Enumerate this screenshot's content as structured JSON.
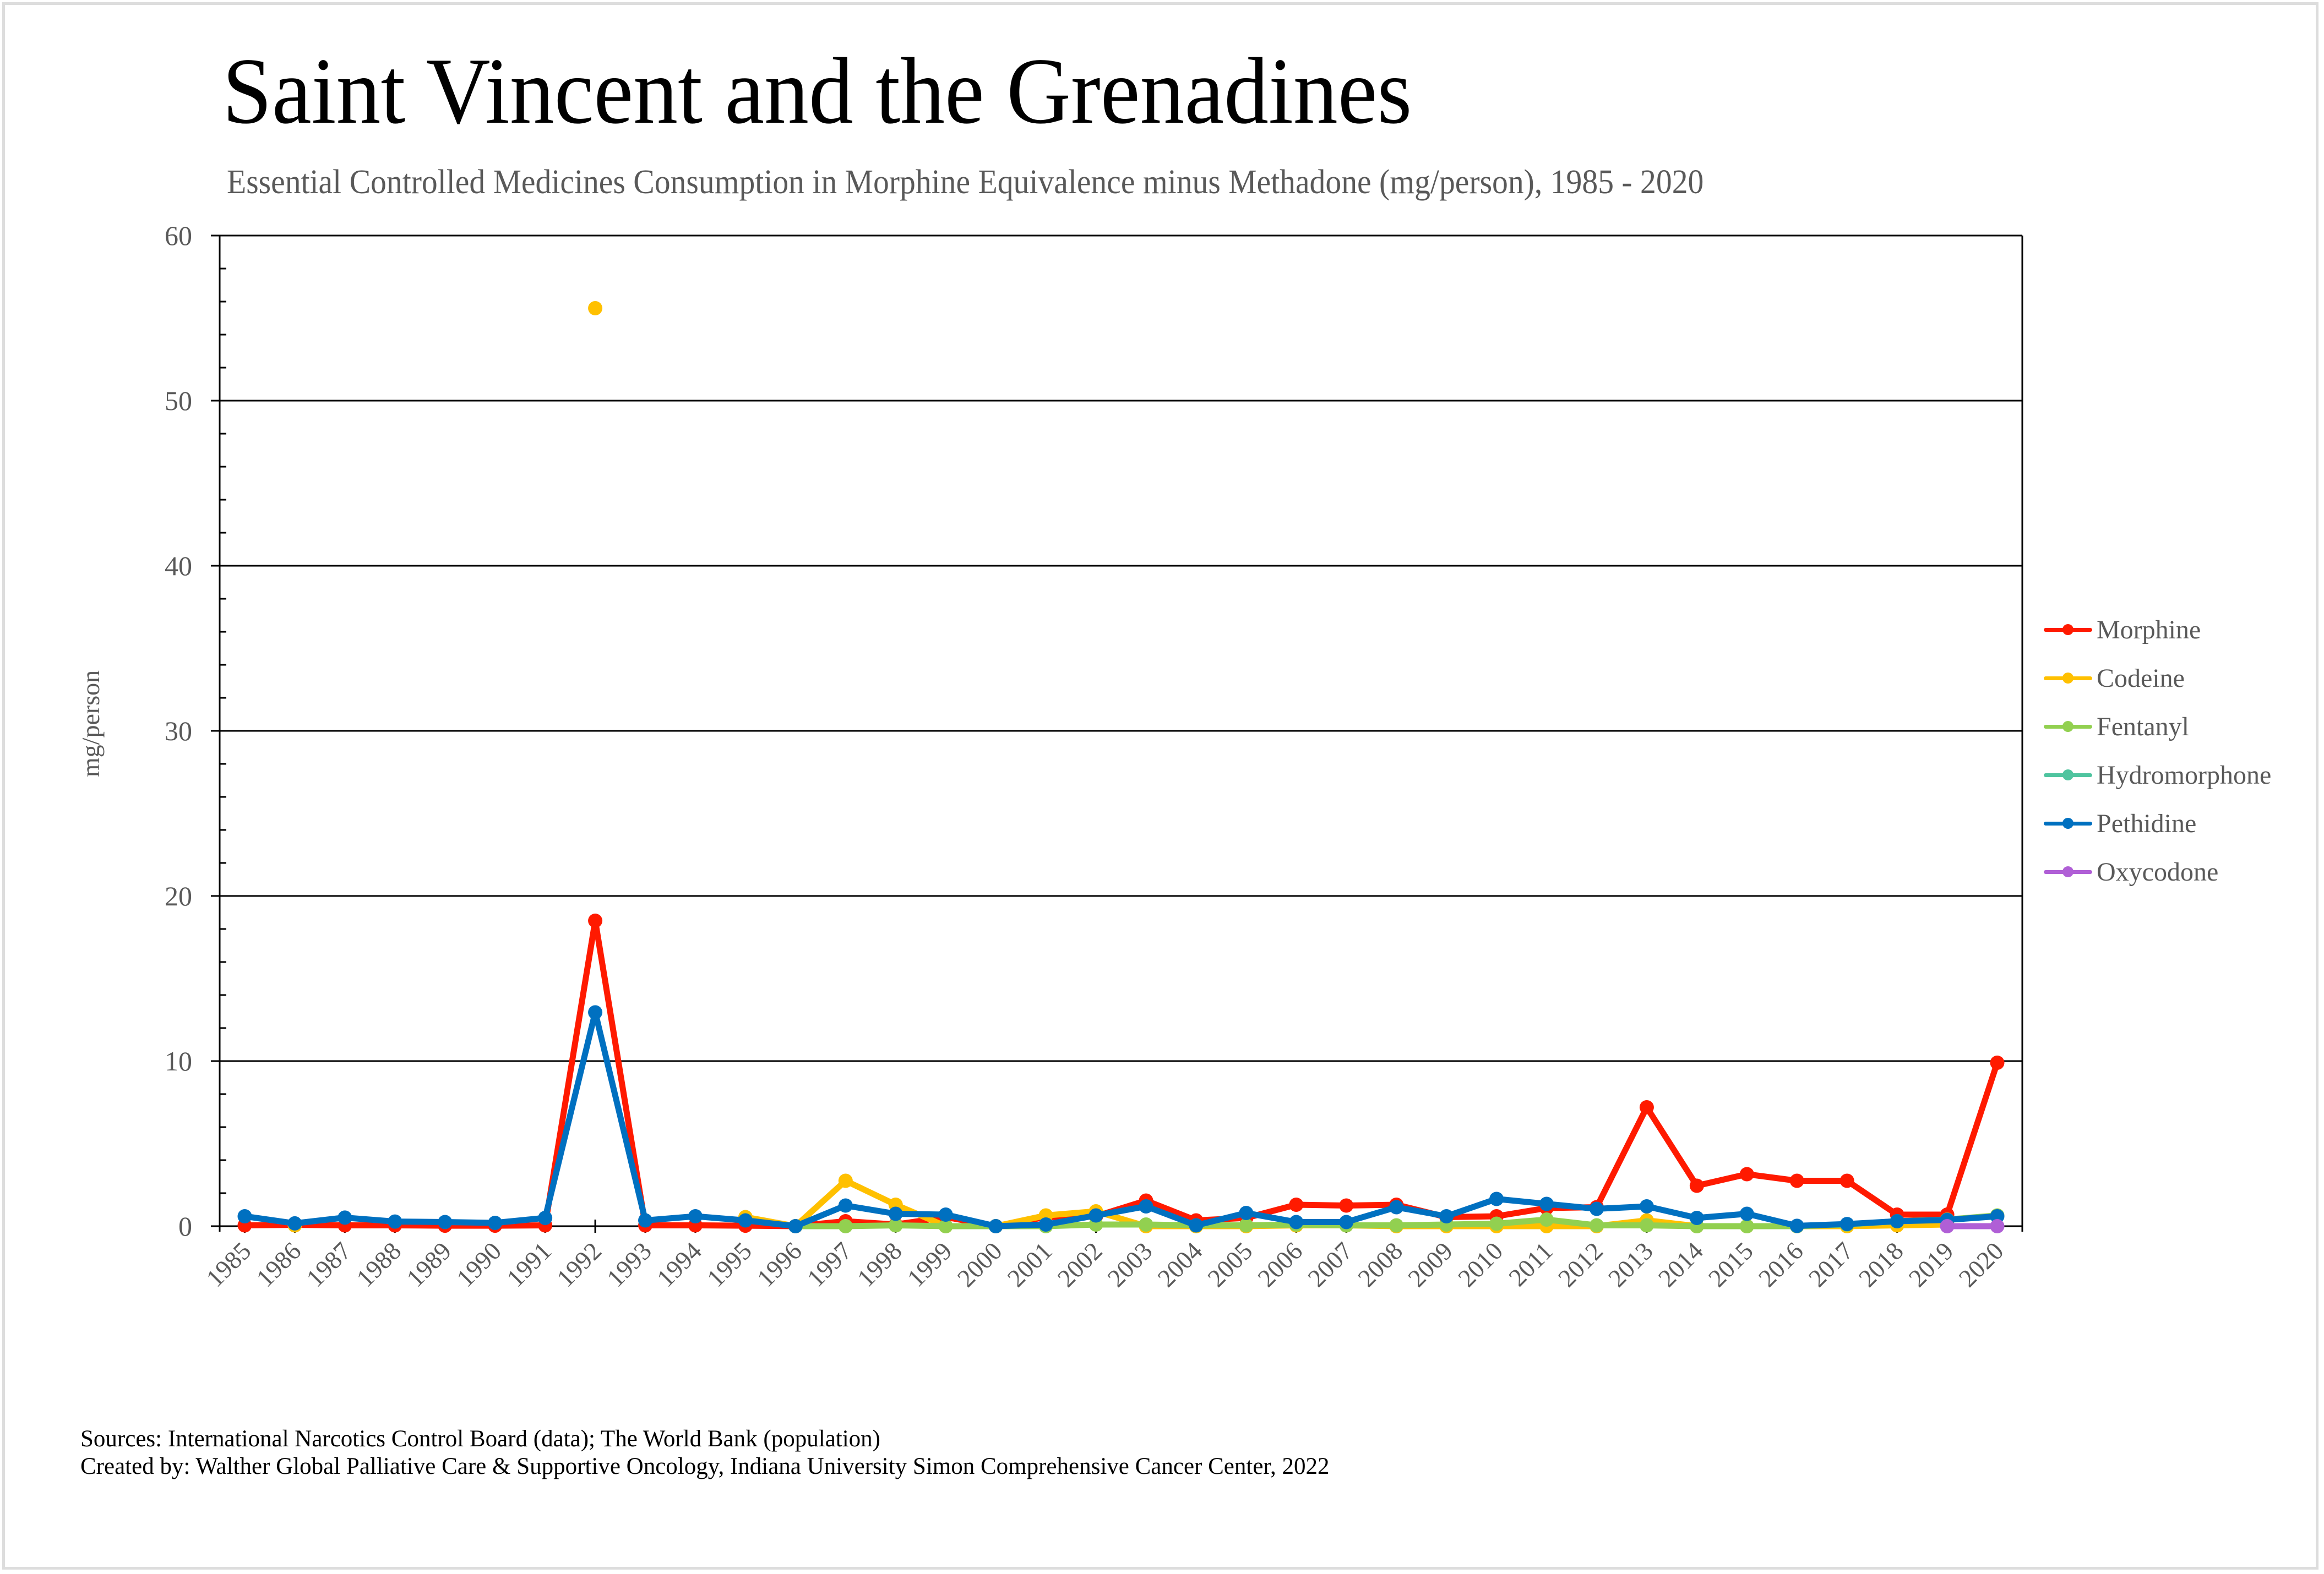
{
  "title": "Saint Vincent and the Grenadines",
  "subtitle": "Essential Controlled Medicines Consumption in Morphine Equivalence minus Methadone (mg/person), 1985 - 2020",
  "footer": {
    "sources": "Sources: International Narcotics Control Board (data); The World Bank (population)",
    "created_by": "Created by: Walther Global Palliative Care & Supportive Oncology, Indiana University Simon Comprehensive Cancer Center, 2022"
  },
  "chart_data": {
    "type": "line",
    "title": "Saint Vincent and the Grenadines",
    "subtitle": "Essential Controlled Medicines Consumption in Morphine Equivalence minus Methadone (mg/person), 1985 - 2020",
    "xlabel": "",
    "ylabel": "mg/person",
    "ylim": [
      0,
      60
    ],
    "yticks": [
      "0",
      "10",
      "20",
      "30",
      "40",
      "50",
      "60"
    ],
    "ytick_values": [
      0,
      10,
      20,
      30,
      40,
      50,
      60
    ],
    "minor_tick_step": 2,
    "grid": true,
    "legend_position": "right",
    "categories": [
      "1985",
      "1986",
      "1987",
      "1988",
      "1989",
      "1990",
      "1991",
      "1992",
      "1993",
      "1994",
      "1995",
      "1996",
      "1997",
      "1998",
      "1999",
      "2000",
      "2001",
      "2002",
      "2003",
      "2004",
      "2005",
      "2006",
      "2007",
      "2008",
      "2009",
      "2010",
      "2011",
      "2012",
      "2013",
      "2014",
      "2015",
      "2016",
      "2017",
      "2018",
      "2019",
      "2020"
    ],
    "series": [
      {
        "name": "Morphine",
        "color": "#ff1a00",
        "values": [
          0.05,
          0.08,
          0.05,
          0.05,
          0.03,
          0.03,
          0.05,
          18.5,
          0.05,
          0.05,
          0.03,
          0.0,
          0.3,
          0.1,
          0.55,
          0.0,
          0.55,
          0.6,
          1.55,
          0.35,
          0.5,
          1.3,
          1.25,
          1.3,
          0.55,
          0.6,
          1.1,
          1.15,
          7.2,
          2.45,
          3.15,
          2.75,
          2.75,
          0.7,
          0.7,
          9.9
        ]
      },
      {
        "name": "Codeine",
        "color": "#ffc000",
        "values": [
          null,
          0.05,
          null,
          null,
          null,
          null,
          null,
          55.6,
          null,
          null,
          0.55,
          0.0,
          2.75,
          1.3,
          0.0,
          0.0,
          0.65,
          0.9,
          0.0,
          0.0,
          0.0,
          0.05,
          0.05,
          0.0,
          0.0,
          0.0,
          0.0,
          0.0,
          0.35,
          0.0,
          0.0,
          0.0,
          0.0,
          0.05,
          0.1,
          null
        ]
      },
      {
        "name": "Fentanyl",
        "color": "#92d050",
        "values": [
          null,
          null,
          null,
          null,
          null,
          null,
          null,
          null,
          null,
          null,
          null,
          0.0,
          0.0,
          0.05,
          0.0,
          0.0,
          0.0,
          0.1,
          0.1,
          0.05,
          0.05,
          0.1,
          0.05,
          0.05,
          0.1,
          0.15,
          0.4,
          0.05,
          0.05,
          0.0,
          0.0,
          0.0,
          0.1,
          0.3,
          0.4,
          0.65
        ]
      },
      {
        "name": "Hydromorphone",
        "color": "#4fc49f",
        "values": [
          null,
          null,
          null,
          null,
          null,
          null,
          null,
          null,
          null,
          null,
          null,
          null,
          null,
          null,
          null,
          null,
          null,
          null,
          null,
          null,
          null,
          null,
          null,
          null,
          null,
          null,
          null,
          null,
          null,
          null,
          null,
          null,
          null,
          null,
          null,
          null
        ]
      },
      {
        "name": "Pethidine",
        "color": "#0070c0",
        "values": [
          0.6,
          0.17,
          0.52,
          0.28,
          0.25,
          0.2,
          0.5,
          12.95,
          0.35,
          0.6,
          0.35,
          0.0,
          1.25,
          0.75,
          0.7,
          0.0,
          0.1,
          0.65,
          1.2,
          0.05,
          0.8,
          0.25,
          0.25,
          1.15,
          0.6,
          1.65,
          1.35,
          1.05,
          1.2,
          0.5,
          0.75,
          0.02,
          0.13,
          0.3,
          0.38,
          0.6
        ]
      },
      {
        "name": "Oxycodone",
        "color": "#b05fd6",
        "values": [
          null,
          null,
          null,
          null,
          null,
          null,
          null,
          null,
          null,
          null,
          null,
          null,
          null,
          null,
          null,
          null,
          null,
          null,
          null,
          null,
          null,
          null,
          null,
          null,
          null,
          null,
          null,
          null,
          null,
          null,
          null,
          null,
          null,
          null,
          0.0,
          0.0
        ]
      }
    ]
  }
}
